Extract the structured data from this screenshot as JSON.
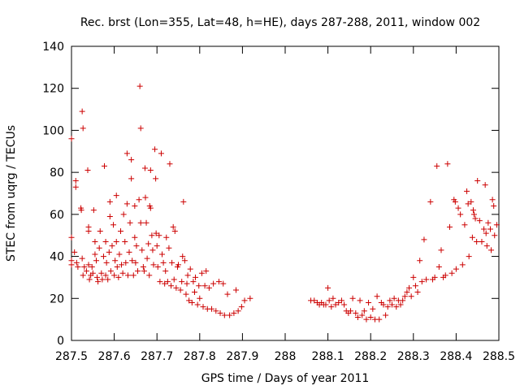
{
  "chart_data": {
    "type": "scatter",
    "title": "Rec. brst (Lon=355, Lat=48, h=HE), days 287-288, 2011, window 002",
    "xlabel": "GPS time / Days of year 2011",
    "ylabel": "STEC from uqrg / TECUs",
    "xlim": [
      287.5,
      288.5
    ],
    "ylim": [
      0,
      140
    ],
    "xticks": [
      287.5,
      287.6,
      287.7,
      287.8,
      287.9,
      288,
      288.1,
      288.2,
      288.3,
      288.4,
      288.5
    ],
    "xtick_labels": [
      "287.5",
      "287.6",
      "287.7",
      "287.8",
      "287.9",
      "288",
      "288.1",
      "288.2",
      "288.3",
      "288.4",
      "288.5"
    ],
    "yticks": [
      0,
      20,
      40,
      60,
      80,
      100,
      120,
      140
    ],
    "ytick_labels": [
      "0",
      "20",
      "40",
      "60",
      "80",
      "100",
      "120",
      "140"
    ],
    "grid": false,
    "marker": "+",
    "color": "#cc0000",
    "series": [
      {
        "name": "STEC",
        "points": [
          [
            287.5,
            96
          ],
          [
            287.5,
            49
          ],
          [
            287.5,
            38
          ],
          [
            287.5,
            36
          ],
          [
            287.507,
            42
          ],
          [
            287.51,
            76
          ],
          [
            287.51,
            73
          ],
          [
            287.512,
            37
          ],
          [
            287.515,
            35
          ],
          [
            287.522,
            63
          ],
          [
            287.523,
            62
          ],
          [
            287.525,
            109
          ],
          [
            287.527,
            101
          ],
          [
            287.525,
            39
          ],
          [
            287.527,
            31
          ],
          [
            287.53,
            35
          ],
          [
            287.535,
            33
          ],
          [
            287.538,
            81
          ],
          [
            287.54,
            54
          ],
          [
            287.54,
            52
          ],
          [
            287.54,
            36
          ],
          [
            287.542,
            29
          ],
          [
            287.545,
            31
          ],
          [
            287.548,
            35
          ],
          [
            287.55,
            32
          ],
          [
            287.552,
            62
          ],
          [
            287.555,
            47
          ],
          [
            287.555,
            41
          ],
          [
            287.558,
            38
          ],
          [
            287.56,
            30
          ],
          [
            287.562,
            28
          ],
          [
            287.565,
            44
          ],
          [
            287.567,
            52
          ],
          [
            287.57,
            32
          ],
          [
            287.572,
            29
          ],
          [
            287.575,
            40
          ],
          [
            287.577,
            83
          ],
          [
            287.58,
            47
          ],
          [
            287.58,
            31
          ],
          [
            287.582,
            37
          ],
          [
            287.585,
            29
          ],
          [
            287.588,
            42
          ],
          [
            287.59,
            66
          ],
          [
            287.59,
            59
          ],
          [
            287.592,
            33
          ],
          [
            287.595,
            45
          ],
          [
            287.598,
            55
          ],
          [
            287.6,
            31
          ],
          [
            287.602,
            38
          ],
          [
            287.605,
            69
          ],
          [
            287.605,
            47
          ],
          [
            287.607,
            35
          ],
          [
            287.61,
            30
          ],
          [
            287.612,
            41
          ],
          [
            287.615,
            52
          ],
          [
            287.617,
            36
          ],
          [
            287.62,
            32
          ],
          [
            287.622,
            60
          ],
          [
            287.625,
            47
          ],
          [
            287.627,
            37
          ],
          [
            287.63,
            89
          ],
          [
            287.63,
            65
          ],
          [
            287.632,
            31
          ],
          [
            287.635,
            42
          ],
          [
            287.637,
            56
          ],
          [
            287.64,
            86
          ],
          [
            287.64,
            77
          ],
          [
            287.642,
            38
          ],
          [
            287.645,
            31
          ],
          [
            287.648,
            64
          ],
          [
            287.648,
            49
          ],
          [
            287.65,
            37
          ],
          [
            287.652,
            45
          ],
          [
            287.655,
            33
          ],
          [
            287.658,
            67
          ],
          [
            287.66,
            121
          ],
          [
            287.662,
            101
          ],
          [
            287.662,
            56
          ],
          [
            287.665,
            43
          ],
          [
            287.668,
            35
          ],
          [
            287.67,
            33
          ],
          [
            287.672,
            82
          ],
          [
            287.673,
            68
          ],
          [
            287.675,
            56
          ],
          [
            287.677,
            39
          ],
          [
            287.68,
            46
          ],
          [
            287.682,
            31
          ],
          [
            287.683,
            64
          ],
          [
            287.685,
            81
          ],
          [
            287.685,
            63
          ],
          [
            287.688,
            50
          ],
          [
            287.69,
            43
          ],
          [
            287.692,
            36
          ],
          [
            287.695,
            91
          ],
          [
            287.697,
            77
          ],
          [
            287.698,
            51
          ],
          [
            287.7,
            45
          ],
          [
            287.702,
            35
          ],
          [
            287.705,
            50
          ],
          [
            287.707,
            28
          ],
          [
            287.71,
            89
          ],
          [
            287.712,
            41
          ],
          [
            287.715,
            37
          ],
          [
            287.718,
            27
          ],
          [
            287.72,
            33
          ],
          [
            287.722,
            49
          ],
          [
            287.725,
            28
          ],
          [
            287.728,
            44
          ],
          [
            287.73,
            84
          ],
          [
            287.733,
            26
          ],
          [
            287.735,
            37
          ],
          [
            287.738,
            54
          ],
          [
            287.74,
            29
          ],
          [
            287.742,
            52
          ],
          [
            287.745,
            25
          ],
          [
            287.748,
            35
          ],
          [
            287.75,
            36
          ],
          [
            287.755,
            24
          ],
          [
            287.758,
            28
          ],
          [
            287.76,
            40
          ],
          [
            287.762,
            66
          ],
          [
            287.765,
            38
          ],
          [
            287.768,
            22
          ],
          [
            287.77,
            27
          ],
          [
            287.772,
            31
          ],
          [
            287.775,
            19
          ],
          [
            287.778,
            34
          ],
          [
            287.782,
            18
          ],
          [
            287.785,
            28
          ],
          [
            287.788,
            23
          ],
          [
            287.79,
            30
          ],
          [
            287.795,
            17
          ],
          [
            287.798,
            26
          ],
          [
            287.8,
            20
          ],
          [
            287.805,
            32
          ],
          [
            287.808,
            16
          ],
          [
            287.812,
            26
          ],
          [
            287.815,
            33
          ],
          [
            287.818,
            15
          ],
          [
            287.822,
            25
          ],
          [
            287.828,
            15
          ],
          [
            287.832,
            27
          ],
          [
            287.838,
            14
          ],
          [
            287.845,
            28
          ],
          [
            287.848,
            13
          ],
          [
            287.855,
            27
          ],
          [
            287.858,
            12
          ],
          [
            287.865,
            22
          ],
          [
            287.87,
            12
          ],
          [
            287.88,
            13
          ],
          [
            287.885,
            24
          ],
          [
            287.89,
            14
          ],
          [
            287.898,
            16
          ],
          [
            287.905,
            19
          ],
          [
            287.918,
            20
          ],
          [
            288.06,
            19
          ],
          [
            288.068,
            19
          ],
          [
            288.075,
            18
          ],
          [
            288.08,
            17
          ],
          [
            288.085,
            18
          ],
          [
            288.09,
            17
          ],
          [
            288.095,
            17
          ],
          [
            288.1,
            25
          ],
          [
            288.103,
            19
          ],
          [
            288.108,
            16
          ],
          [
            288.112,
            20
          ],
          [
            288.118,
            17
          ],
          [
            288.125,
            18
          ],
          [
            288.132,
            19
          ],
          [
            288.138,
            17
          ],
          [
            288.143,
            14
          ],
          [
            288.148,
            13
          ],
          [
            288.153,
            14
          ],
          [
            288.158,
            20
          ],
          [
            288.165,
            13
          ],
          [
            288.17,
            11
          ],
          [
            288.175,
            19
          ],
          [
            288.18,
            12
          ],
          [
            288.185,
            14
          ],
          [
            288.19,
            10
          ],
          [
            288.195,
            18
          ],
          [
            288.2,
            11
          ],
          [
            288.205,
            15
          ],
          [
            288.21,
            10
          ],
          [
            288.215,
            21
          ],
          [
            288.22,
            10
          ],
          [
            288.225,
            18
          ],
          [
            288.23,
            17
          ],
          [
            288.235,
            12
          ],
          [
            288.24,
            16
          ],
          [
            288.245,
            19
          ],
          [
            288.25,
            17
          ],
          [
            288.255,
            20
          ],
          [
            288.26,
            16
          ],
          [
            288.265,
            19
          ],
          [
            288.27,
            17
          ],
          [
            288.275,
            19
          ],
          [
            288.28,
            21
          ],
          [
            288.285,
            23
          ],
          [
            288.29,
            25
          ],
          [
            288.295,
            21
          ],
          [
            288.3,
            30
          ],
          [
            288.305,
            26
          ],
          [
            288.31,
            23
          ],
          [
            288.315,
            38
          ],
          [
            288.32,
            28
          ],
          [
            288.325,
            48
          ],
          [
            288.33,
            29
          ],
          [
            288.34,
            66
          ],
          [
            288.345,
            29
          ],
          [
            288.35,
            30
          ],
          [
            288.355,
            83
          ],
          [
            288.36,
            35
          ],
          [
            288.365,
            43
          ],
          [
            288.37,
            30
          ],
          [
            288.375,
            31
          ],
          [
            288.38,
            84
          ],
          [
            288.385,
            54
          ],
          [
            288.39,
            32
          ],
          [
            288.395,
            67
          ],
          [
            288.398,
            66
          ],
          [
            288.4,
            34
          ],
          [
            288.405,
            63
          ],
          [
            288.41,
            60
          ],
          [
            288.415,
            36
          ],
          [
            288.42,
            55
          ],
          [
            288.425,
            71
          ],
          [
            288.428,
            65
          ],
          [
            288.43,
            40
          ],
          [
            288.435,
            66
          ],
          [
            288.438,
            49
          ],
          [
            288.44,
            62
          ],
          [
            288.442,
            60
          ],
          [
            288.445,
            58
          ],
          [
            288.448,
            47
          ],
          [
            288.45,
            76
          ],
          [
            288.455,
            57
          ],
          [
            288.46,
            47
          ],
          [
            288.465,
            53
          ],
          [
            288.468,
            74
          ],
          [
            288.47,
            51
          ],
          [
            288.472,
            45
          ],
          [
            288.475,
            56
          ],
          [
            288.48,
            53
          ],
          [
            288.482,
            43
          ],
          [
            288.485,
            67
          ],
          [
            288.488,
            64
          ],
          [
            288.49,
            50
          ],
          [
            288.495,
            55
          ]
        ]
      }
    ]
  }
}
